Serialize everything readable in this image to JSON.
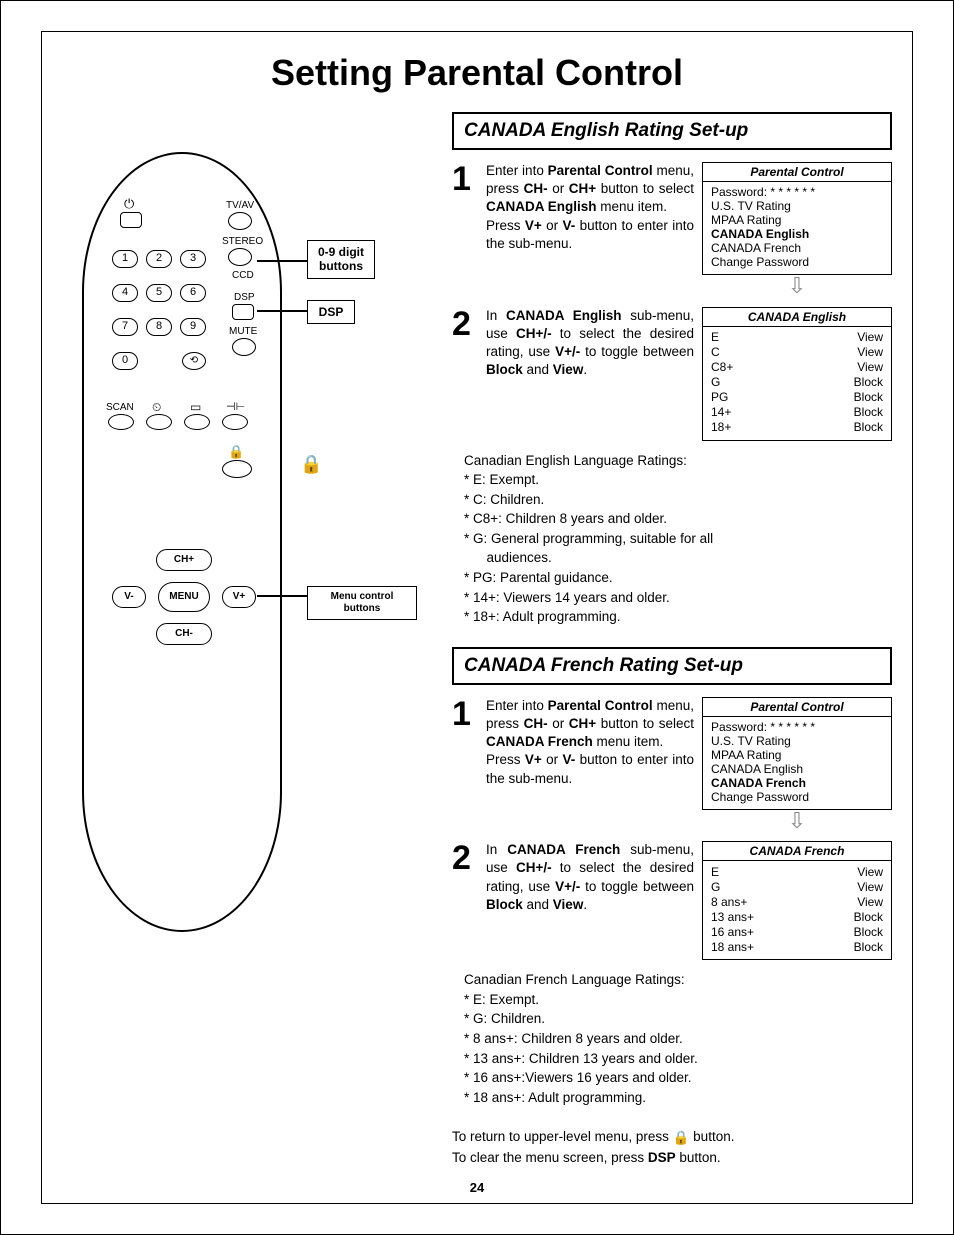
{
  "page_title": "Setting Parental Control",
  "page_number": "24",
  "remote": {
    "labels": {
      "tv_av": "TV/AV",
      "stereo": "STEREO",
      "ccd": "CCD",
      "dsp": "DSP",
      "mute": "MUTE",
      "scan": "SCAN",
      "ch_plus": "CH+",
      "ch_minus": "CH-",
      "v_plus": "V+",
      "v_minus": "V-",
      "menu": "MENU"
    },
    "digits": [
      "1",
      "2",
      "3",
      "4",
      "5",
      "6",
      "7",
      "8",
      "9",
      "0"
    ]
  },
  "callouts": {
    "digits": "0-9 digit buttons",
    "dsp": "DSP",
    "menu_ctrl": "Menu control buttons"
  },
  "section_english": {
    "header": "CANADA English Rating Set-up",
    "step1_pre": "Enter into ",
    "step1_b1": "Parental Control",
    "step1_mid1": " menu, press ",
    "step1_b2": "CH-",
    "step1_mid2": " or ",
    "step1_b3": "CH+",
    "step1_mid3": " button to select ",
    "step1_b4": "CANADA English",
    "step1_mid4": " menu item.",
    "step1_line2a": "Press ",
    "step1_b5": "V+",
    "step1_line2b": " or ",
    "step1_b6": "V-",
    "step1_line2c": " button to enter into the sub-menu.",
    "step2_a": "In ",
    "step2_b1": "CANADA English",
    "step2_b": " sub-menu, use ",
    "step2_b2": "CH+/-",
    "step2_c": " to select the desired rating, use ",
    "step2_b3": "V+/-",
    "step2_d": " to toggle between ",
    "step2_b4": "Block",
    "step2_e": " and ",
    "step2_b5": "View",
    "step2_f": ".",
    "ratings_title": "Canadian English Language Ratings:",
    "ratings": [
      "* E: Exempt.",
      "* C: Children.",
      "* C8+: Children 8 years and older.",
      "* G: General programming, suitable for all",
      "      audiences.",
      "* PG: Parental guidance.",
      "* 14+: Viewers 14 years and older.",
      "* 18+: Adult programming."
    ]
  },
  "osd_parental": {
    "title": "Parental Control",
    "password_label": "Password:",
    "password_mask": "* * * * * *",
    "items": [
      "U.S. TV Rating",
      "MPAA Rating",
      "CANADA English",
      "CANADA French",
      "Change Password"
    ]
  },
  "osd_canada_en": {
    "title": "CANADA English",
    "rows": [
      {
        "k": "E",
        "v": "View"
      },
      {
        "k": "C",
        "v": "View"
      },
      {
        "k": "C8+",
        "v": "View"
      },
      {
        "k": "G",
        "v": "Block"
      },
      {
        "k": "PG",
        "v": "Block"
      },
      {
        "k": "14+",
        "v": "Block"
      },
      {
        "k": "18+",
        "v": "Block"
      }
    ]
  },
  "section_french": {
    "header": "CANADA French Rating Set-up",
    "step1_pre": "Enter into ",
    "step1_b1": "Parental Control",
    "step1_mid1": " menu, press ",
    "step1_b2": "CH-",
    "step1_mid2": " or ",
    "step1_b3": "CH+",
    "step1_mid3": " button to select ",
    "step1_b4": "CANADA French",
    "step1_mid4": " menu item.",
    "step1_line2a": "Press ",
    "step1_b5": "V+",
    "step1_line2b": " or ",
    "step1_b6": "V-",
    "step1_line2c": " button to enter into the sub-menu.",
    "step2_a": "In ",
    "step2_b1": "CANADA French",
    "step2_b": " sub-menu, use ",
    "step2_b2": "CH+/-",
    "step2_c": " to select the desired rating, use ",
    "step2_b3": "V+/-",
    "step2_d": " to toggle between ",
    "step2_b4": "Block",
    "step2_e": " and ",
    "step2_b5": "View",
    "step2_f": ".",
    "ratings_title": "Canadian French Language Ratings:",
    "ratings": [
      "* E: Exempt.",
      "* G: Children.",
      "* 8 ans+: Children 8  years and older.",
      "* 13 ans+: Children 13 years and older.",
      "* 16 ans+:Viewers 16 years and older.",
      "* 18 ans+: Adult programming."
    ]
  },
  "osd_parental_fr": {
    "title": "Parental Control",
    "items": [
      "U.S. TV Rating",
      "MPAA Rating",
      "CANADA English",
      "CANADA French",
      "Change Password"
    ]
  },
  "osd_canada_fr": {
    "title": "CANADA French",
    "rows": [
      {
        "k": "E",
        "v": "View"
      },
      {
        "k": "G",
        "v": "View"
      },
      {
        "k": "8 ans+",
        "v": "View"
      },
      {
        "k": "13 ans+",
        "v": "Block"
      },
      {
        "k": "16 ans+",
        "v": "Block"
      },
      {
        "k": "18 ans+",
        "v": "Block"
      }
    ]
  },
  "footer": {
    "line1a": "To return to upper-level menu, press ",
    "line1b": " button.",
    "line2a": "To clear the menu screen, press ",
    "line2_b": "DSP",
    "line2c": " button."
  }
}
